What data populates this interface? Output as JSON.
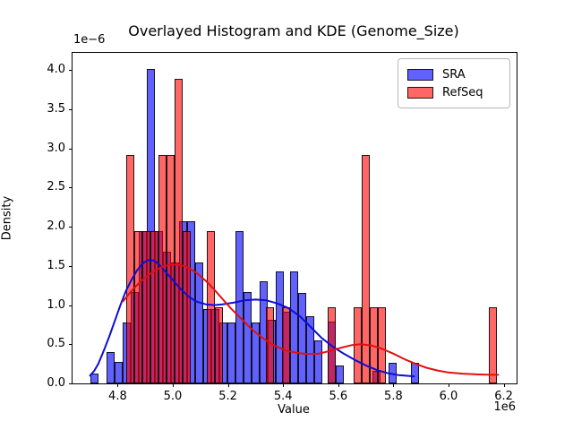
{
  "figure": {
    "title": "Overlayed Histogram and KDE (Genome_Size)",
    "xlabel": "Value",
    "ylabel": "Density",
    "x_offset_label": "1e6",
    "y_offset_label": "1e−6"
  },
  "legend": {
    "entries": [
      {
        "label": "SRA",
        "color": "#0000ff"
      },
      {
        "label": "RefSeq",
        "color": "#ff0000"
      }
    ]
  },
  "chart_data": {
    "type": "histogram+kde-overlay",
    "title": "Overlayed Histogram and KDE (Genome_Size)",
    "xlabel": "Value",
    "ylabel": "Density",
    "x_scale_factor": "1e6",
    "y_scale_factor": "1e-6",
    "xlim": [
      4.6364,
      6.2468
    ],
    "ylim": [
      0,
      4.2203
    ],
    "x_ticks": [
      4.8,
      5.0,
      5.2,
      5.4,
      5.6,
      5.8,
      6.0,
      6.2
    ],
    "x_tick_labels": [
      "4.8",
      "5.0",
      "5.2",
      "5.4",
      "5.6",
      "5.8",
      "6.0",
      "6.2"
    ],
    "y_ticks": [
      0.0,
      0.5,
      1.0,
      1.5,
      2.0,
      2.5,
      3.0,
      3.5,
      4.0
    ],
    "y_tick_labels": [
      "0.0",
      "0.5",
      "1.0",
      "1.5",
      "2.0",
      "2.5",
      "3.0",
      "3.5",
      "4.0"
    ],
    "grid": false,
    "legend_position": "upper right",
    "bin_width": 0.02922,
    "series": [
      {
        "name": "SRA",
        "color": "#0000ff",
        "fill_alpha": 0.62,
        "kde_color": "#0d0dd6",
        "bars": [
          [
            4.7013,
            0.13
          ],
          [
            4.7597,
            0.4
          ],
          [
            4.789,
            0.27
          ],
          [
            4.8182,
            0.78
          ],
          [
            4.8474,
            1.17
          ],
          [
            4.8766,
            1.95
          ],
          [
            4.9058,
            4.02
          ],
          [
            4.9351,
            1.95
          ],
          [
            4.9643,
            1.68
          ],
          [
            4.9935,
            1.55
          ],
          [
            5.0227,
            2.07
          ],
          [
            5.0519,
            2.07
          ],
          [
            5.0812,
            1.55
          ],
          [
            5.1104,
            0.95
          ],
          [
            5.1396,
            0.95
          ],
          [
            5.1688,
            0.78
          ],
          [
            5.1981,
            0.78
          ],
          [
            5.2273,
            1.94
          ],
          [
            5.2565,
            1.17
          ],
          [
            5.2857,
            0.78
          ],
          [
            5.3149,
            1.3
          ],
          [
            5.3442,
            0.81
          ],
          [
            5.3734,
            1.43
          ],
          [
            5.3961,
            0.91
          ],
          [
            5.4253,
            1.43
          ],
          [
            5.4545,
            1.16
          ],
          [
            5.4838,
            0.86
          ],
          [
            5.513,
            0.55
          ],
          [
            5.5617,
            0.79
          ],
          [
            5.5909,
            0.23
          ],
          [
            5.724,
            0.16
          ],
          [
            5.7825,
            0.26
          ],
          [
            5.8636,
            0.26
          ]
        ],
        "kde": [
          [
            4.7,
            0.1
          ],
          [
            4.715,
            0.16
          ],
          [
            4.73,
            0.25
          ],
          [
            4.75,
            0.42
          ],
          [
            4.77,
            0.6
          ],
          [
            4.79,
            0.8
          ],
          [
            4.81,
            1.0
          ],
          [
            4.83,
            1.18
          ],
          [
            4.85,
            1.32
          ],
          [
            4.87,
            1.44
          ],
          [
            4.89,
            1.53
          ],
          [
            4.91,
            1.575
          ],
          [
            4.93,
            1.57
          ],
          [
            4.95,
            1.52
          ],
          [
            4.97,
            1.44
          ],
          [
            5.0,
            1.32
          ],
          [
            5.03,
            1.2
          ],
          [
            5.06,
            1.1
          ],
          [
            5.09,
            1.04
          ],
          [
            5.12,
            1.01
          ],
          [
            5.15,
            1.0
          ],
          [
            5.18,
            1.01
          ],
          [
            5.22,
            1.03
          ],
          [
            5.26,
            1.06
          ],
          [
            5.3,
            1.07
          ],
          [
            5.34,
            1.06
          ],
          [
            5.38,
            1.02
          ],
          [
            5.42,
            0.96
          ],
          [
            5.46,
            0.86
          ],
          [
            5.5,
            0.72
          ],
          [
            5.54,
            0.58
          ],
          [
            5.58,
            0.47
          ],
          [
            5.62,
            0.38
          ],
          [
            5.66,
            0.3
          ],
          [
            5.7,
            0.23
          ],
          [
            5.74,
            0.17
          ],
          [
            5.78,
            0.13
          ],
          [
            5.82,
            0.105
          ],
          [
            5.86,
            0.095
          ],
          [
            5.875,
            0.09
          ]
        ]
      },
      {
        "name": "RefSeq",
        "color": "#ff0000",
        "fill_alpha": 0.6,
        "kde_color": "#e30f0f",
        "bars": [
          [
            4.8312,
            2.92
          ],
          [
            4.8604,
            1.95
          ],
          [
            4.8896,
            1.95
          ],
          [
            4.9188,
            1.95
          ],
          [
            4.9481,
            2.92
          ],
          [
            4.9773,
            2.92
          ],
          [
            5.0065,
            3.89
          ],
          [
            5.0357,
            1.95
          ],
          [
            5.1234,
            1.95
          ],
          [
            5.1526,
            0.97
          ],
          [
            5.3377,
            0.97
          ],
          [
            5.3961,
            0.97
          ],
          [
            5.5617,
            0.97
          ],
          [
            5.6558,
            0.97
          ],
          [
            5.6851,
            2.92
          ],
          [
            5.7143,
            0.97
          ],
          [
            5.7435,
            0.97
          ],
          [
            6.1461,
            0.97
          ]
        ],
        "kde": [
          [
            4.82,
            1.05
          ],
          [
            4.85,
            1.18
          ],
          [
            4.88,
            1.29
          ],
          [
            4.91,
            1.38
          ],
          [
            4.94,
            1.45
          ],
          [
            4.97,
            1.5
          ],
          [
            5.0,
            1.52
          ],
          [
            5.03,
            1.51
          ],
          [
            5.06,
            1.47
          ],
          [
            5.09,
            1.4
          ],
          [
            5.12,
            1.31
          ],
          [
            5.15,
            1.2
          ],
          [
            5.18,
            1.08
          ],
          [
            5.21,
            0.96
          ],
          [
            5.25,
            0.82
          ],
          [
            5.29,
            0.68
          ],
          [
            5.33,
            0.57
          ],
          [
            5.37,
            0.48
          ],
          [
            5.41,
            0.42
          ],
          [
            5.45,
            0.39
          ],
          [
            5.49,
            0.375
          ],
          [
            5.53,
            0.38
          ],
          [
            5.57,
            0.415
          ],
          [
            5.61,
            0.455
          ],
          [
            5.65,
            0.49
          ],
          [
            5.68,
            0.5
          ],
          [
            5.72,
            0.485
          ],
          [
            5.76,
            0.44
          ],
          [
            5.8,
            0.38
          ],
          [
            5.84,
            0.31
          ],
          [
            5.88,
            0.25
          ],
          [
            5.92,
            0.2
          ],
          [
            5.96,
            0.165
          ],
          [
            6.0,
            0.14
          ],
          [
            6.05,
            0.125
          ],
          [
            6.1,
            0.115
          ],
          [
            6.15,
            0.11
          ],
          [
            6.18,
            0.11
          ]
        ]
      }
    ]
  }
}
